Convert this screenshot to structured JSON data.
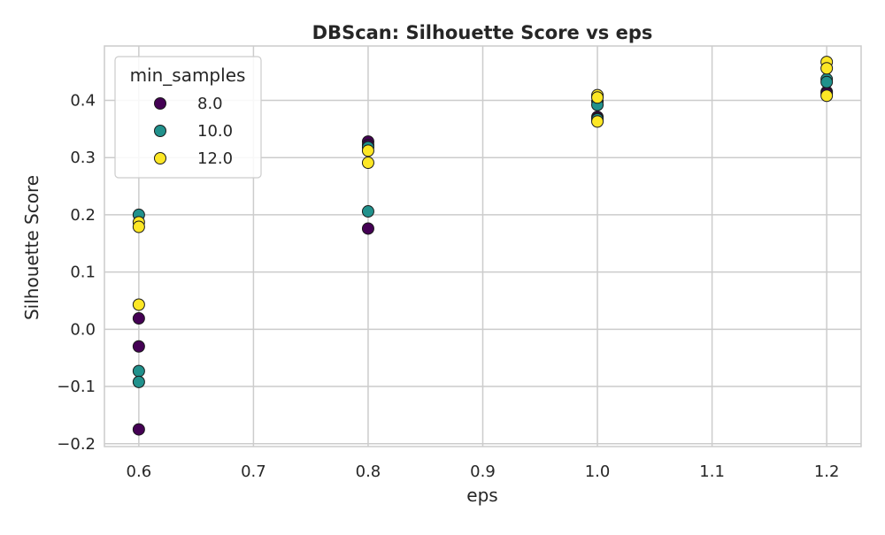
{
  "chart_data": {
    "type": "scatter",
    "title": "DBScan: Silhouette Score vs eps",
    "xlabel": "eps",
    "ylabel": "Silhouette Score",
    "xlim": [
      0.57,
      1.23
    ],
    "ylim": [
      -0.205,
      0.495
    ],
    "xticks": [
      0.6,
      0.7,
      0.8,
      0.9,
      1.0,
      1.1,
      1.2
    ],
    "xtick_labels": [
      "0.6",
      "0.7",
      "0.8",
      "0.9",
      "1.0",
      "1.1",
      "1.2"
    ],
    "yticks": [
      -0.2,
      -0.1,
      0.0,
      0.1,
      0.2,
      0.3,
      0.4
    ],
    "ytick_labels": [
      "−0.2",
      "−0.1",
      "0.0",
      "0.1",
      "0.2",
      "0.3",
      "0.4"
    ],
    "grid": true,
    "legend": {
      "title": "min_samples",
      "position": "top-left"
    },
    "series": [
      {
        "name": "8.0",
        "color": "#440154",
        "points": [
          [
            0.6,
            0.019
          ],
          [
            0.6,
            -0.03
          ],
          [
            0.6,
            -0.175
          ],
          [
            0.8,
            0.328
          ],
          [
            0.8,
            0.322
          ],
          [
            0.8,
            0.176
          ],
          [
            1.0,
            0.371
          ],
          [
            1.0,
            0.368
          ],
          [
            1.2,
            0.415
          ],
          [
            1.2,
            0.412
          ]
        ]
      },
      {
        "name": "10.0",
        "color": "#21918c",
        "points": [
          [
            0.6,
            0.2
          ],
          [
            0.6,
            -0.073
          ],
          [
            0.6,
            -0.092
          ],
          [
            0.8,
            0.318
          ],
          [
            0.8,
            0.206
          ],
          [
            1.0,
            0.398
          ],
          [
            1.0,
            0.392
          ],
          [
            1.0,
            0.367
          ],
          [
            1.2,
            0.437
          ],
          [
            1.2,
            0.432
          ]
        ]
      },
      {
        "name": "12.0",
        "color": "#fde725",
        "points": [
          [
            0.6,
            0.187
          ],
          [
            0.6,
            0.179
          ],
          [
            0.6,
            0.043
          ],
          [
            0.8,
            0.312
          ],
          [
            0.8,
            0.291
          ],
          [
            1.0,
            0.409
          ],
          [
            1.0,
            0.405
          ],
          [
            1.0,
            0.363
          ],
          [
            1.2,
            0.467
          ],
          [
            1.2,
            0.456
          ],
          [
            1.2,
            0.408
          ]
        ]
      }
    ]
  }
}
